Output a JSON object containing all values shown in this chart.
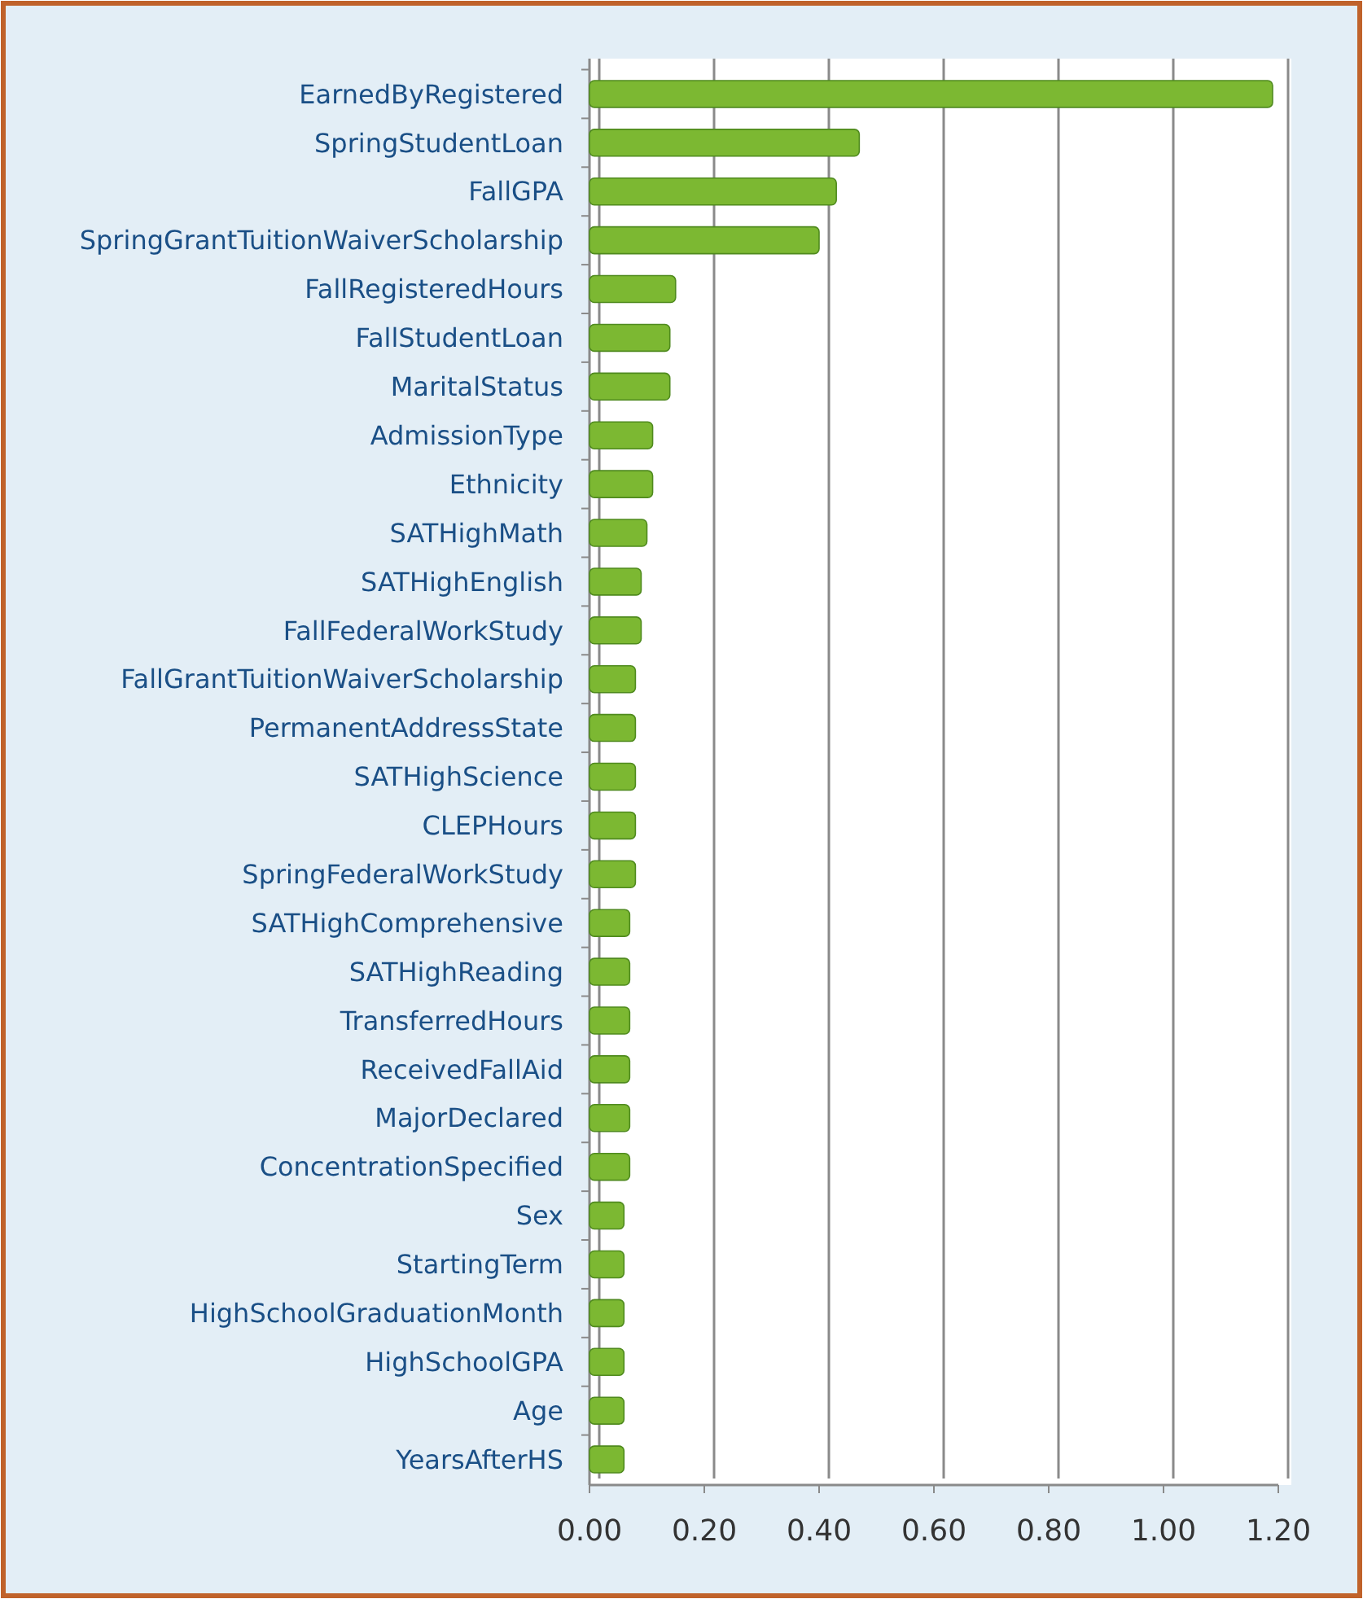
{
  "chart_data": {
    "type": "bar",
    "orientation": "horizontal",
    "color": "#7cb832",
    "grid": "x",
    "xlim": [
      0,
      1.2
    ],
    "xticks": [
      {
        "value": 0,
        "label": "0.00"
      },
      {
        "value": 0.2,
        "label": "0.20"
      },
      {
        "value": 0.4,
        "label": "0.40"
      },
      {
        "value": 0.6,
        "label": "0.60"
      },
      {
        "value": 0.8,
        "label": "0.80"
      },
      {
        "value": 1.0,
        "label": "1.00"
      },
      {
        "value": 1.2,
        "label": "1.20"
      }
    ],
    "categories": [
      "EarnedByRegistered",
      "SpringStudentLoan",
      "FallGPA",
      "SpringGrantTuitionWaiverScholarship",
      "FallRegisteredHours",
      "FallStudentLoan",
      "MaritalStatus",
      "AdmissionType",
      "Ethnicity",
      "SATHighMath",
      "SATHighEnglish",
      "FallFederalWorkStudy",
      "FallGrantTuitionWaiverScholarship",
      "PermanentAddressState",
      "SATHighScience",
      "CLEPHours",
      "SpringFederalWorkStudy",
      "SATHighComprehensive",
      "SATHighReading",
      "TransferredHours",
      "ReceivedFallAid",
      "MajorDeclared",
      "ConcentrationSpecified",
      "Sex",
      "StartingTerm",
      "HighSchoolGraduationMonth",
      "HighSchoolGPA",
      "Age",
      "YearsAfterHS"
    ],
    "values": [
      1.19,
      0.47,
      0.43,
      0.4,
      0.15,
      0.14,
      0.14,
      0.11,
      0.11,
      0.1,
      0.09,
      0.09,
      0.08,
      0.08,
      0.08,
      0.08,
      0.08,
      0.07,
      0.07,
      0.07,
      0.07,
      0.07,
      0.07,
      0.06,
      0.06,
      0.06,
      0.06,
      0.06,
      0.06
    ]
  }
}
